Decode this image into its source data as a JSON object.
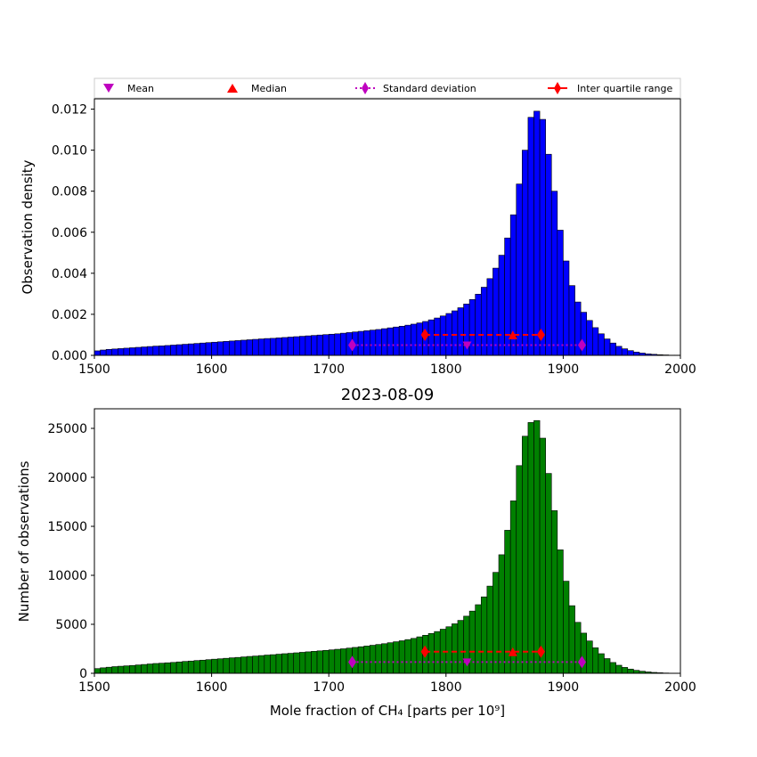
{
  "legend": {
    "location": "top, spanning axes width",
    "items": [
      {
        "label": "Mean",
        "marker": "triangle-down-icon",
        "color": "#bf00bf"
      },
      {
        "label": "Median",
        "marker": "triangle-up-icon",
        "color": "#ff0000"
      },
      {
        "label": "Standard deviation",
        "marker": "diamond-icon",
        "color": "#bf00bf",
        "line": "dotted"
      },
      {
        "label": "Inter quartile range",
        "marker": "diamond-icon",
        "color": "#ff0000",
        "line": "solid"
      }
    ]
  },
  "chart_data": [
    {
      "type": "bar",
      "ylabel": "Observation density",
      "xlabel": "",
      "title": "",
      "xlim": [
        1500,
        2000
      ],
      "ylim": [
        0,
        0.0125
      ],
      "x_ticks": [
        1500,
        1600,
        1700,
        1800,
        1900,
        2000
      ],
      "y_ticks": [
        "0.000",
        "0.002",
        "0.004",
        "0.006",
        "0.008",
        "0.010",
        "0.012"
      ],
      "bar_color": "#0000ff",
      "bin_width": 5,
      "bin_start": 1500,
      "values": [
        0.00022,
        0.00026,
        0.00029,
        0.00031,
        0.00033,
        0.00035,
        0.00037,
        0.00039,
        0.00041,
        0.00043,
        0.00045,
        0.00046,
        0.00048,
        0.0005,
        0.00052,
        0.00054,
        0.00056,
        0.00058,
        0.0006,
        0.00062,
        0.00064,
        0.00066,
        0.00068,
        0.0007,
        0.00072,
        0.00074,
        0.00076,
        0.00078,
        0.0008,
        0.00082,
        0.00083,
        0.00085,
        0.00087,
        0.00089,
        0.00091,
        0.00093,
        0.00095,
        0.00097,
        0.00099,
        0.00101,
        0.00103,
        0.00105,
        0.00108,
        0.00111,
        0.00114,
        0.00117,
        0.0012,
        0.00123,
        0.00126,
        0.0013,
        0.00134,
        0.00138,
        0.00142,
        0.00147,
        0.00152,
        0.00158,
        0.00165,
        0.00173,
        0.00182,
        0.00192,
        0.00204,
        0.00217,
        0.00232,
        0.0025,
        0.00272,
        0.00298,
        0.00332,
        0.00374,
        0.00425,
        0.00488,
        0.00572,
        0.00685,
        0.00835,
        0.01,
        0.0116,
        0.0119,
        0.0115,
        0.0098,
        0.008,
        0.0061,
        0.0046,
        0.0034,
        0.0026,
        0.0021,
        0.0017,
        0.00135,
        0.00105,
        0.0008,
        0.0006,
        0.00044,
        0.00032,
        0.00023,
        0.00016,
        0.00011,
        7e-05,
        5e-05,
        3e-05,
        2e-05,
        1e-05,
        1e-05
      ],
      "stats": {
        "mean": {
          "x": 1818,
          "y": 0.0005
        },
        "median": {
          "x": 1857,
          "y": 0.001
        },
        "std_range": {
          "x": [
            1720,
            1916
          ],
          "y": 0.0005
        },
        "iqr_range": {
          "x": [
            1782,
            1881
          ],
          "y": 0.001
        }
      }
    },
    {
      "type": "bar",
      "title": "2023-08-09",
      "ylabel": "Number of observations",
      "xlabel": "Mole fraction of CH₄ [parts per 10⁹]",
      "xlim": [
        1500,
        2000
      ],
      "ylim": [
        0,
        27000
      ],
      "x_ticks": [
        1500,
        1600,
        1700,
        1800,
        1900,
        2000
      ],
      "y_ticks": [
        "0",
        "5000",
        "10000",
        "15000",
        "20000",
        "25000"
      ],
      "bar_color": "#008000",
      "bin_width": 5,
      "bin_start": 1500,
      "values": [
        480,
        560,
        620,
        680,
        720,
        760,
        800,
        850,
        900,
        950,
        1000,
        1030,
        1070,
        1110,
        1160,
        1210,
        1250,
        1300,
        1340,
        1390,
        1440,
        1480,
        1530,
        1580,
        1620,
        1670,
        1720,
        1760,
        1810,
        1860,
        1900,
        1950,
        2000,
        2040,
        2090,
        2140,
        2190,
        2240,
        2290,
        2340,
        2390,
        2450,
        2500,
        2570,
        2640,
        2710,
        2780,
        2860,
        2940,
        3020,
        3120,
        3220,
        3320,
        3440,
        3560,
        3720,
        3880,
        4060,
        4260,
        4500,
        4750,
        5050,
        5400,
        5830,
        6350,
        7000,
        7800,
        8900,
        10300,
        12100,
        14600,
        17600,
        21200,
        24200,
        25600,
        25800,
        24000,
        20400,
        16600,
        12600,
        9400,
        6900,
        5200,
        4100,
        3300,
        2600,
        2000,
        1500,
        1100,
        820,
        600,
        430,
        300,
        210,
        140,
        90,
        55,
        30,
        15,
        8
      ],
      "stats": {
        "mean": {
          "x": 1818,
          "y": 1150
        },
        "median": {
          "x": 1857,
          "y": 2200
        },
        "std_range": {
          "x": [
            1720,
            1916
          ],
          "y": 1150
        },
        "iqr_range": {
          "x": [
            1782,
            1881
          ],
          "y": 2200
        }
      }
    }
  ]
}
